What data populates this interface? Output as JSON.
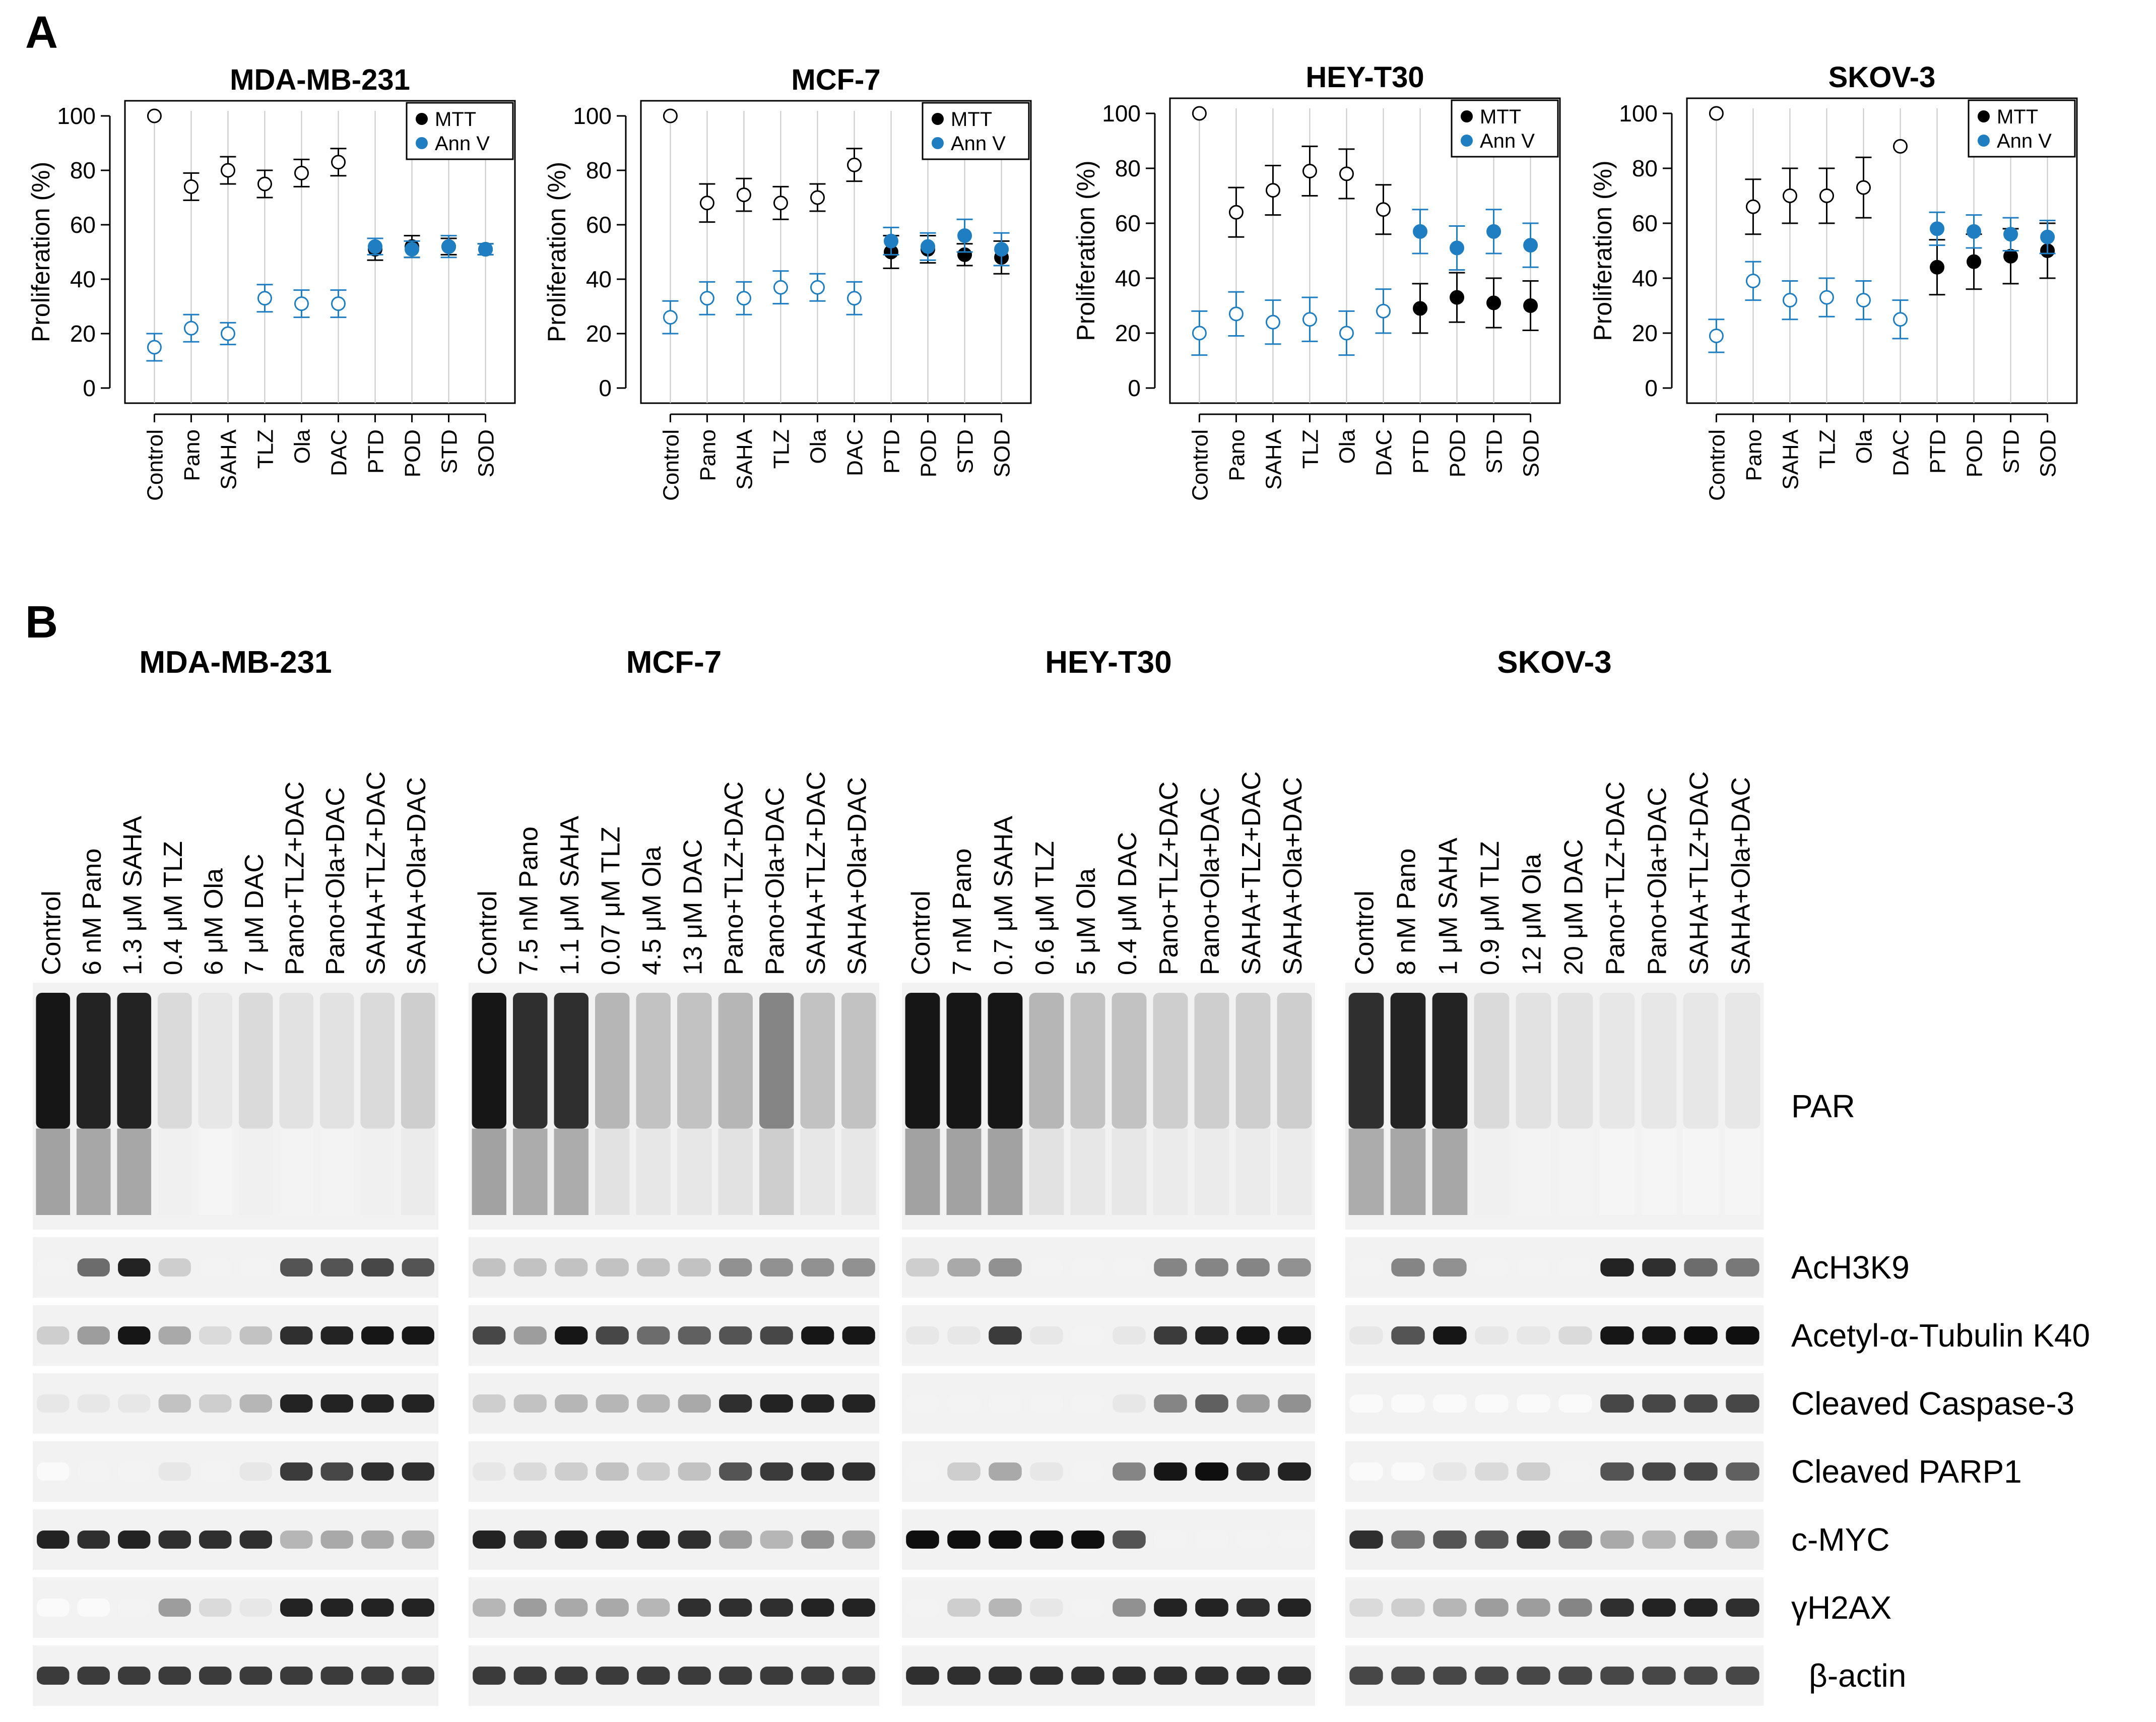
{
  "panel_a": {
    "label": "A",
    "legend": [
      "MTT",
      "Ann V"
    ],
    "colors": {
      "mtt": "#000000",
      "annv": "#1f7ec2",
      "line": "#c8c8c8"
    },
    "ylabel": "Proliferation (%)",
    "yticks": [
      "0",
      "20",
      "40",
      "60",
      "80",
      "100"
    ],
    "categories": [
      "Control",
      "Pano",
      "SAHA",
      "TLZ",
      "Ola",
      "DAC",
      "PTD",
      "POD",
      "STD",
      "SOD"
    ],
    "plots": [
      {
        "title": "MDA-MB-231"
      },
      {
        "title": "MCF-7"
      },
      {
        "title": "HEY-T30"
      },
      {
        "title": "SKOV-3"
      }
    ]
  },
  "chart_data": [
    {
      "type": "scatter",
      "title": "MDA-MB-231",
      "ylabel": "Proliferation (%)",
      "ylim": [
        0,
        100
      ],
      "categories": [
        "Control",
        "Pano",
        "SAHA",
        "TLZ",
        "Ola",
        "DAC",
        "PTD",
        "POD",
        "STD",
        "SOD"
      ],
      "series": [
        {
          "name": "MTT",
          "values": [
            100,
            74,
            80,
            75,
            79,
            83,
            51,
            52,
            52,
            51
          ],
          "err": [
            0,
            5,
            5,
            5,
            5,
            5,
            4,
            4,
            3,
            2
          ]
        },
        {
          "name": "Ann V",
          "values": [
            15,
            22,
            20,
            33,
            31,
            31,
            52,
            51,
            52,
            51
          ],
          "err": [
            5,
            5,
            4,
            5,
            5,
            5,
            3,
            3,
            4,
            2
          ]
        }
      ]
    },
    {
      "type": "scatter",
      "title": "MCF-7",
      "ylabel": "Proliferation (%)",
      "ylim": [
        0,
        100
      ],
      "categories": [
        "Control",
        "Pano",
        "SAHA",
        "TLZ",
        "Ola",
        "DAC",
        "PTD",
        "POD",
        "STD",
        "SOD"
      ],
      "series": [
        {
          "name": "MTT",
          "values": [
            100,
            68,
            71,
            68,
            70,
            82,
            50,
            51,
            49,
            48
          ],
          "err": [
            0,
            7,
            6,
            6,
            5,
            6,
            6,
            5,
            4,
            6
          ]
        },
        {
          "name": "Ann V",
          "values": [
            26,
            33,
            33,
            37,
            37,
            33,
            54,
            52,
            56,
            51
          ],
          "err": [
            6,
            6,
            6,
            6,
            5,
            6,
            5,
            5,
            6,
            6
          ]
        }
      ]
    },
    {
      "type": "scatter",
      "title": "HEY-T30",
      "ylabel": "Proliferation (%)",
      "ylim": [
        0,
        100
      ],
      "categories": [
        "Control",
        "Pano",
        "SAHA",
        "TLZ",
        "Ola",
        "DAC",
        "PTD",
        "POD",
        "STD",
        "SOD"
      ],
      "series": [
        {
          "name": "MTT",
          "values": [
            100,
            64,
            72,
            79,
            78,
            65,
            29,
            33,
            31,
            30
          ],
          "err": [
            0,
            9,
            9,
            9,
            9,
            9,
            9,
            9,
            9,
            9
          ]
        },
        {
          "name": "Ann V",
          "values": [
            20,
            27,
            24,
            25,
            20,
            28,
            57,
            51,
            57,
            52
          ],
          "err": [
            8,
            8,
            8,
            8,
            8,
            8,
            8,
            8,
            8,
            8
          ]
        }
      ]
    },
    {
      "type": "scatter",
      "title": "SKOV-3",
      "ylabel": "Proliferation (%)",
      "ylim": [
        0,
        100
      ],
      "categories": [
        "Control",
        "Pano",
        "SAHA",
        "TLZ",
        "Ola",
        "DAC",
        "PTD",
        "POD",
        "STD",
        "SOD"
      ],
      "series": [
        {
          "name": "MTT",
          "values": [
            100,
            66,
            70,
            70,
            73,
            88,
            44,
            46,
            48,
            50
          ],
          "err": [
            0,
            10,
            10,
            10,
            11,
            0,
            10,
            10,
            10,
            10
          ]
        },
        {
          "name": "Ann V",
          "values": [
            19,
            39,
            32,
            33,
            32,
            25,
            58,
            57,
            56,
            55
          ],
          "err": [
            6,
            7,
            7,
            7,
            7,
            7,
            6,
            6,
            6,
            6
          ]
        }
      ]
    }
  ],
  "panel_b": {
    "label": "B",
    "blots": [
      {
        "title": "MDA-MB-231",
        "lanes": [
          "Control",
          "6 nM Pano",
          "1.3 μM SAHA",
          "0.4 μM TLZ",
          "6 μM Ola",
          "7 μM DAC",
          "Pano+TLZ+DAC",
          "Pano+Ola+DAC",
          "SAHA+TLZ+DAC",
          "SAHA+Ola+DAC"
        ]
      },
      {
        "title": "MCF-7",
        "lanes": [
          "Control",
          "7.5 nM Pano",
          "1.1 μM SAHA",
          "0.07 μM TLZ",
          "4.5 μM Ola",
          "13 μM DAC",
          "Pano+TLZ+DAC",
          "Pano+Ola+DAC",
          "SAHA+TLZ+DAC",
          "SAHA+Ola+DAC"
        ]
      },
      {
        "title": "HEY-T30",
        "lanes": [
          "Control",
          "7 nM Pano",
          "0.7 μM SAHA",
          "0.6 μM TLZ",
          "5 μM Ola",
          "0.4 μM DAC",
          "Pano+TLZ+DAC",
          "Pano+Ola+DAC",
          "SAHA+TLZ+DAC",
          "SAHA+Ola+DAC"
        ]
      },
      {
        "title": "SKOV-3",
        "lanes": [
          "Control",
          "8 nM Pano",
          "1 μM SAHA",
          "0.9 μM TLZ",
          "12 μM Ola",
          "20 μM DAC",
          "Pano+TLZ+DAC",
          "Pano+Ola+DAC",
          "SAHA+TLZ+DAC",
          "SAHA+Ola+DAC"
        ]
      }
    ],
    "row_labels": [
      "PAR",
      "AcH3K9",
      "Acetyl-α-Tubulin K40",
      "Cleaved Caspase-3",
      "Cleaved PARP1",
      "c-MYC",
      "γH2AX",
      "β-actin"
    ]
  }
}
